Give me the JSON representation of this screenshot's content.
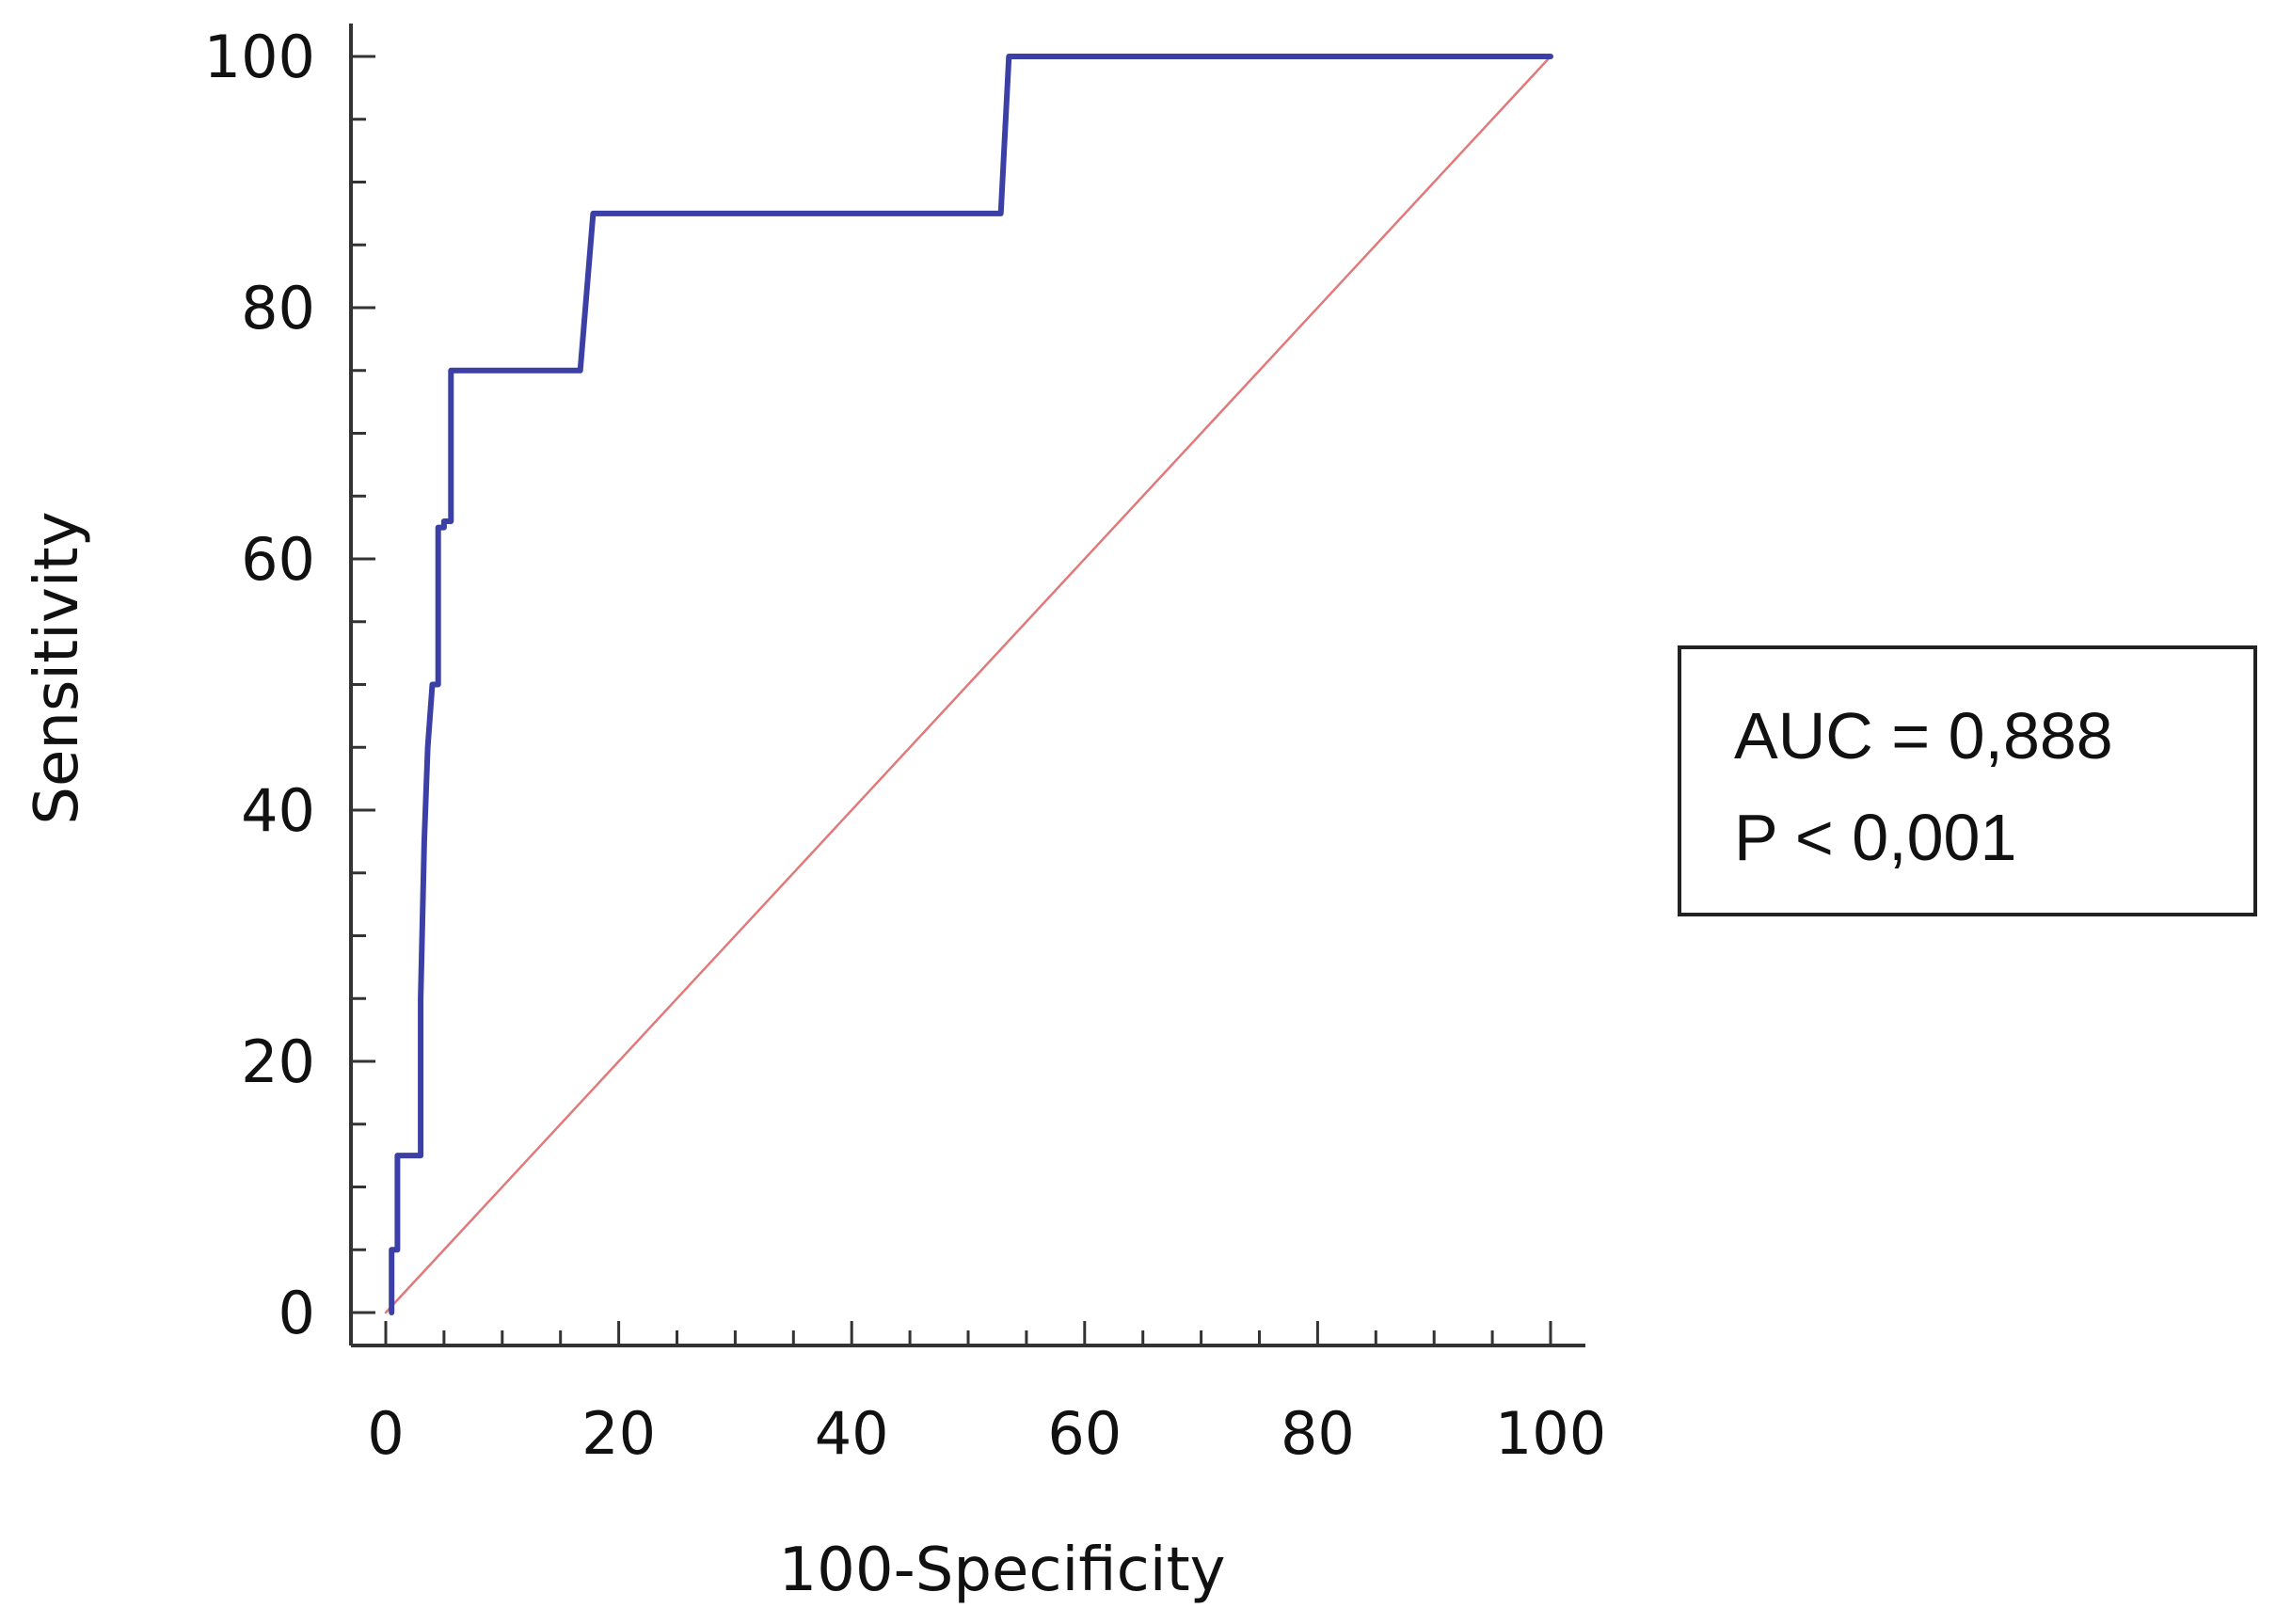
{
  "chart_data": {
    "type": "line",
    "xlabel": "100-Specificity",
    "ylabel": "Sensitivity",
    "xlim": [
      0,
      100
    ],
    "ylim": [
      0,
      100
    ],
    "x_ticks": [
      "0",
      "20",
      "40",
      "60",
      "80",
      "100"
    ],
    "y_ticks": [
      "0",
      "20",
      "40",
      "60",
      "80",
      "100"
    ],
    "grid": false,
    "series": [
      {
        "color": "#3b3fa6",
        "x": [
          0.5,
          0.5,
          1,
          1,
          3,
          3,
          3.3,
          3.6,
          4,
          4.5,
          4.5,
          5,
          5,
          5.6,
          5.6,
          16.7,
          17.8,
          52.8,
          53.5,
          100
        ],
        "y": [
          0,
          5,
          5,
          12.5,
          12.5,
          25,
          37.5,
          45,
          50,
          50,
          62.5,
          62.5,
          63,
          63,
          75,
          75,
          87.5,
          87.5,
          100,
          100
        ]
      },
      {
        "color": "#e07a7a",
        "x": [
          0,
          100
        ],
        "y": [
          0,
          100
        ]
      }
    ],
    "annotations": [
      "AUC = 0,888",
      "P < 0,001"
    ]
  }
}
